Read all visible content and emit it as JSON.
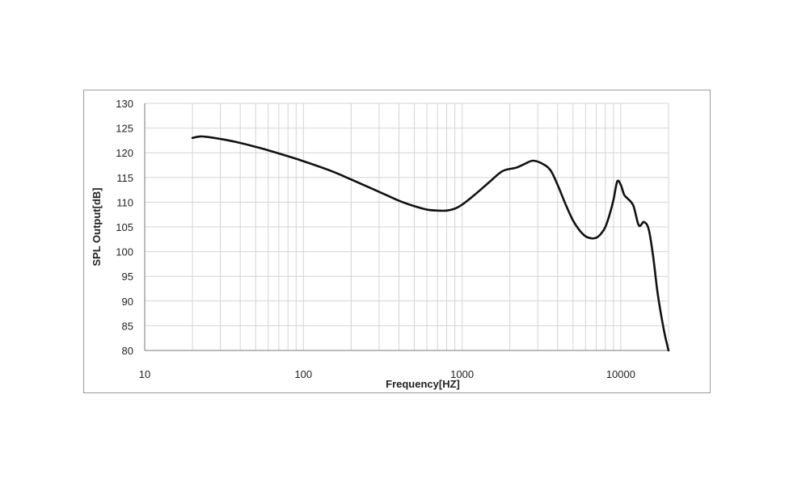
{
  "chart_data": {
    "type": "line",
    "xlabel": "Frequency[HZ]",
    "ylabel": "SPL Output[dB]",
    "x_scale": "log",
    "xlim": [
      10,
      20000
    ],
    "ylim": [
      80,
      130
    ],
    "y_ticks": [
      "130",
      "125",
      "120",
      "115",
      "110",
      "105",
      "100",
      "95",
      "90",
      "85",
      "80"
    ],
    "x_ticks": [
      "10",
      "100",
      "1000",
      "10000"
    ],
    "grid": true,
    "line_color": "#111111",
    "grid_color": "#d4d4d4",
    "series": [
      {
        "x": [
          20,
          23,
          30,
          40,
          50,
          60,
          80,
          100,
          150,
          200,
          300,
          400,
          500,
          600,
          700,
          800,
          900,
          1000,
          1200,
          1500,
          1800,
          2200,
          2500,
          2800,
          3200,
          3600,
          4000,
          4500,
          5000,
          5500,
          6000,
          6500,
          7000,
          7500,
          8000,
          8500,
          9000,
          9500,
          10000,
          10500,
          11000,
          12000,
          13000,
          14000,
          15000,
          16000,
          17000,
          18000,
          19000,
          20000
        ],
        "y": [
          123,
          123.3,
          122.8,
          122,
          121.2,
          120.5,
          119.3,
          118.3,
          116.3,
          114.6,
          112.1,
          110.3,
          109.2,
          108.5,
          108.3,
          108.3,
          108.7,
          109.5,
          111.5,
          114.2,
          116.3,
          117,
          117.8,
          118.4,
          117.8,
          116.5,
          113.5,
          109.5,
          106.3,
          104.3,
          103.1,
          102.7,
          102.8,
          103.6,
          105,
          107.5,
          110.5,
          114.2,
          113.5,
          111.5,
          110.8,
          109.3,
          105.3,
          106,
          104.5,
          99,
          92,
          87,
          83,
          80
        ]
      }
    ]
  }
}
